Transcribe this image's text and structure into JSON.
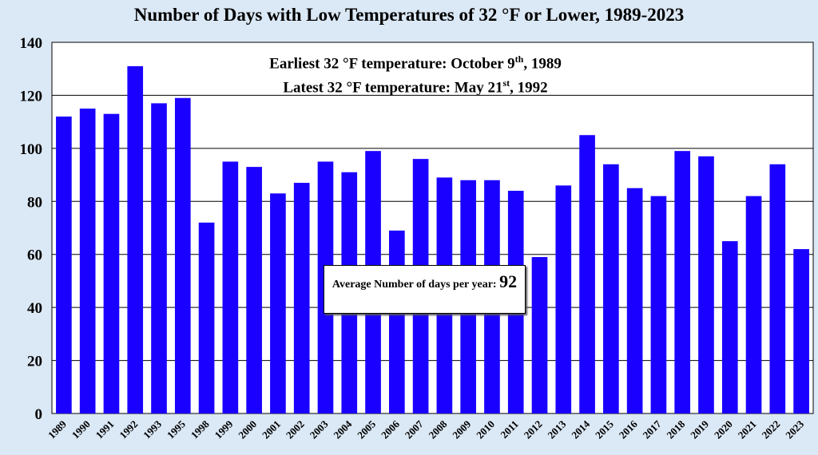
{
  "chart_data": {
    "type": "bar",
    "title": "Number of Days with Low Temperatures of 32 °F or Lower, 1989-2023",
    "xlabel": "",
    "ylabel": "",
    "ylim": [
      0,
      140
    ],
    "yticks": [
      0,
      20,
      40,
      60,
      80,
      100,
      120,
      140
    ],
    "grid": true,
    "bar_color": "#1a00ff",
    "categories": [
      "1989",
      "1990",
      "1991",
      "1992",
      "1993",
      "1995",
      "1998",
      "1999",
      "2000",
      "2001",
      "2002",
      "2003",
      "2004",
      "2005",
      "2006",
      "2007",
      "2008",
      "2009",
      "2010",
      "2011",
      "2012",
      "2013",
      "2014",
      "2015",
      "2016",
      "2017",
      "2018",
      "2019",
      "2020",
      "2021",
      "2022",
      "2023"
    ],
    "values": [
      112,
      115,
      113,
      131,
      117,
      119,
      72,
      95,
      93,
      83,
      87,
      95,
      91,
      99,
      69,
      96,
      89,
      88,
      88,
      84,
      59,
      86,
      105,
      94,
      85,
      82,
      99,
      97,
      65,
      82,
      94,
      62
    ],
    "annotations": {
      "earliest_prefix": "Earliest 32 °F temperature: October 9",
      "earliest_sup": "th",
      "earliest_suffix": ", 1989",
      "latest_prefix": "Latest 32 °F temperature: May 21",
      "latest_sup": "st",
      "latest_suffix": ", 1992",
      "average_label": "Average Number of days per year:",
      "average_value": "92"
    }
  }
}
